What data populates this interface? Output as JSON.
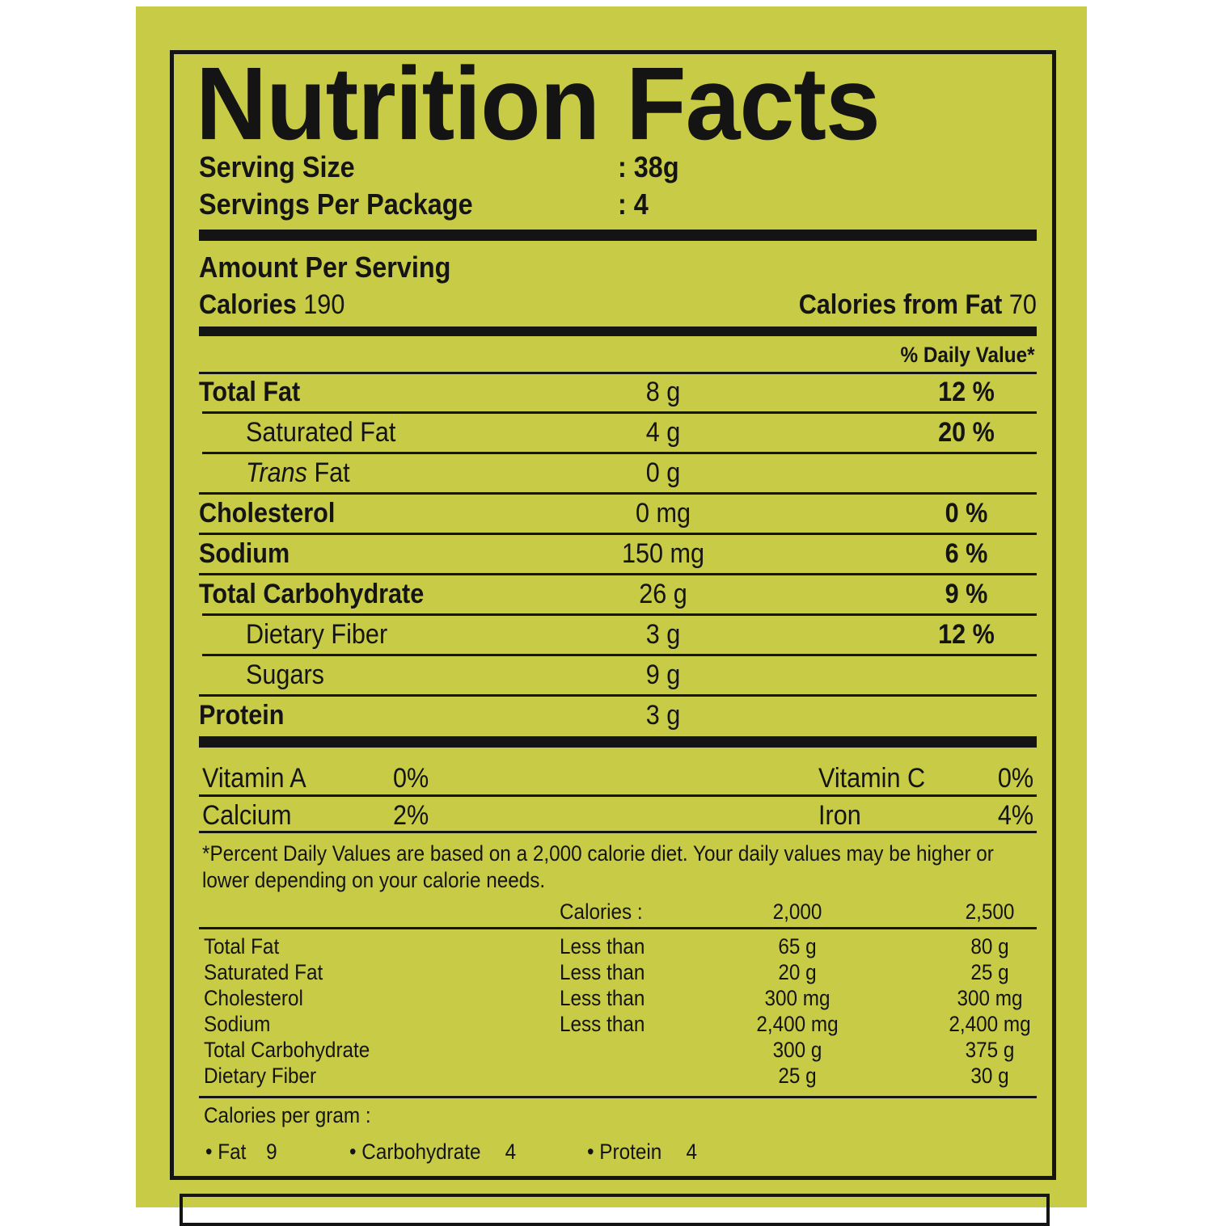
{
  "title": "Nutrition Facts",
  "serving": {
    "size_label": "Serving Size",
    "size_value": ": 38g",
    "per_package_label": "Servings Per Package",
    "per_package_value": ": 4"
  },
  "amount": {
    "heading": "Amount Per Serving",
    "calories_label": "Calories",
    "calories_value": "190",
    "fat_cal_label": "Calories from Fat",
    "fat_cal_value": "70",
    "dv_header": "% Daily Value*"
  },
  "nutrients": [
    {
      "label": "Total Fat",
      "amount": "8 g",
      "dv": "12 %"
    },
    {
      "label": "Saturated Fat",
      "amount": "4 g",
      "dv": "20 %"
    },
    {
      "label_italic": "Trans",
      "label": " Fat",
      "amount": "0 g",
      "dv": ""
    },
    {
      "label": "Cholesterol",
      "amount": "0 mg",
      "dv": "0 %"
    },
    {
      "label": "Sodium",
      "amount": "150 mg",
      "dv": "6 %"
    },
    {
      "label": "Total Carbohydrate",
      "amount": "26 g",
      "dv": "9 %"
    },
    {
      "label": "Dietary Fiber",
      "amount": "3 g",
      "dv": "12 %"
    },
    {
      "label": "Sugars",
      "amount": "9 g",
      "dv": ""
    },
    {
      "label": "Protein",
      "amount": "3 g",
      "dv": ""
    }
  ],
  "vitamins": [
    {
      "name": "Vitamin A",
      "value": "0%"
    },
    {
      "name": "Vitamin C",
      "value": "0%"
    },
    {
      "name": "Calcium",
      "value": "2%"
    },
    {
      "name": "Iron",
      "value": "4%"
    }
  ],
  "footnote": {
    "line1": "*Percent Daily Values are based on a 2,000 calorie diet. Your daily values may be higher or",
    "line2": "lower depending on your calorie needs."
  },
  "dv_table": {
    "calories_label": "Calories :",
    "col1": "2,000",
    "col2": "2,500",
    "rows": [
      {
        "name": "Total Fat",
        "limit": "Less than",
        "v1": "65 g",
        "v2": "80 g"
      },
      {
        "name": "Saturated Fat",
        "limit": "Less than",
        "v1": "20 g",
        "v2": "25 g"
      },
      {
        "name": "Cholesterol",
        "limit": "Less than",
        "v1": "300 mg",
        "v2": "300 mg"
      },
      {
        "name": "Sodium",
        "limit": "Less than",
        "v1": "2,400 mg",
        "v2": "2,400 mg"
      },
      {
        "name": "Total Carbohydrate",
        "limit": "",
        "v1": "300 g",
        "v2": "375 g"
      },
      {
        "name": "Dietary Fiber",
        "limit": "",
        "v1": "25 g",
        "v2": "30 g"
      }
    ]
  },
  "per_gram": {
    "heading": "Calories per gram :",
    "fat_label": "Fat",
    "fat_value": "9",
    "carb_label": "Carbohydrate",
    "carb_value": "4",
    "protein_label": "Protein",
    "protein_value": "4"
  },
  "colors": {
    "background": "#c8cb45",
    "ink": "#141414"
  }
}
